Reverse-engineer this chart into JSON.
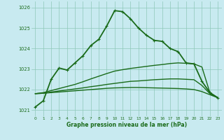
{
  "xlabel": "Graphe pression niveau de la mer (hPa)",
  "xlim": [
    -0.5,
    23.5
  ],
  "ylim": [
    1020.7,
    1026.3
  ],
  "yticks": [
    1021,
    1022,
    1023,
    1024,
    1025,
    1026
  ],
  "xticks": [
    0,
    1,
    2,
    3,
    4,
    5,
    6,
    7,
    8,
    9,
    10,
    11,
    12,
    13,
    14,
    15,
    16,
    17,
    18,
    19,
    20,
    21,
    22,
    23
  ],
  "bg_color": "#c8eaf0",
  "grid_color": "#8ec8b8",
  "line_color": "#1a6b1a",
  "series": [
    {
      "name": "main_zigzag",
      "x": [
        0,
        1,
        2,
        3,
        4,
        5,
        6,
        7,
        8,
        9,
        10,
        11,
        12,
        13,
        14,
        15,
        16,
        17,
        18,
        19,
        20,
        21,
        22,
        23
      ],
      "y": [
        1021.15,
        1021.45,
        1022.5,
        1023.05,
        1022.95,
        1023.3,
        1023.65,
        1024.15,
        1024.45,
        1025.1,
        1025.85,
        1025.8,
        1025.45,
        1025.0,
        1024.65,
        1024.4,
        1024.35,
        1024.0,
        1023.85,
        1023.3,
        1023.25,
        1022.4,
        1021.85,
        1021.6
      ],
      "marker": true,
      "lw": 1.3
    },
    {
      "name": "smooth_upper",
      "x": [
        0,
        1,
        2,
        3,
        4,
        5,
        6,
        7,
        8,
        9,
        10,
        11,
        12,
        13,
        14,
        15,
        16,
        17,
        18,
        19,
        20,
        21,
        22,
        23
      ],
      "y": [
        1021.8,
        1021.85,
        1021.95,
        1022.05,
        1022.15,
        1022.25,
        1022.38,
        1022.52,
        1022.65,
        1022.78,
        1022.9,
        1022.97,
        1023.03,
        1023.08,
        1023.13,
        1023.18,
        1023.22,
        1023.27,
        1023.3,
        1023.28,
        1023.25,
        1023.1,
        1021.85,
        1021.6
      ],
      "marker": false,
      "lw": 1.0
    },
    {
      "name": "smooth_lower",
      "x": [
        0,
        1,
        2,
        3,
        4,
        5,
        6,
        7,
        8,
        9,
        10,
        11,
        12,
        13,
        14,
        15,
        16,
        17,
        18,
        19,
        20,
        21,
        22,
        23
      ],
      "y": [
        1021.8,
        1021.82,
        1021.88,
        1021.93,
        1021.98,
        1022.03,
        1022.08,
        1022.14,
        1022.19,
        1022.25,
        1022.3,
        1022.35,
        1022.4,
        1022.42,
        1022.45,
        1022.48,
        1022.5,
        1022.52,
        1022.52,
        1022.5,
        1022.48,
        1022.2,
        1021.8,
        1021.6
      ],
      "marker": false,
      "lw": 1.0
    },
    {
      "name": "smooth_flat",
      "x": [
        0,
        1,
        2,
        3,
        4,
        5,
        6,
        7,
        8,
        9,
        10,
        11,
        12,
        13,
        14,
        15,
        16,
        17,
        18,
        19,
        20,
        21,
        22,
        23
      ],
      "y": [
        1021.8,
        1021.82,
        1021.85,
        1021.88,
        1021.91,
        1021.94,
        1021.97,
        1022.0,
        1022.03,
        1022.06,
        1022.08,
        1022.09,
        1022.1,
        1022.1,
        1022.09,
        1022.08,
        1022.07,
        1022.06,
        1022.05,
        1022.03,
        1022.0,
        1021.9,
        1021.75,
        1021.6
      ],
      "marker": false,
      "lw": 1.0
    }
  ]
}
